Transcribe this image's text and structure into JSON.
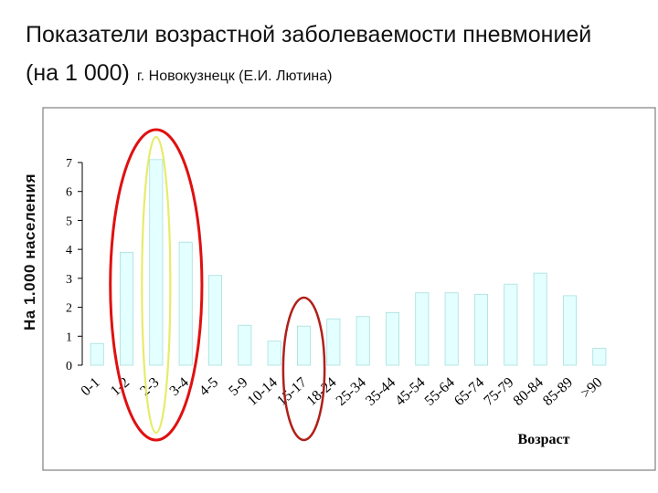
{
  "header": {
    "title_line1": "Показатели возрастной заболеваемости пневмонией",
    "title_line2_main": "(на 1 000)",
    "title_line2_sub": "г. Новокузнецк (Е.И. Лютина)"
  },
  "chart_data": {
    "type": "bar",
    "ylabel": "На 1.000 населения",
    "xlabel": "Возраст",
    "ylim": [
      0,
      7
    ],
    "yticks": [
      0,
      1,
      2,
      3,
      4,
      5,
      6,
      7
    ],
    "grid": false,
    "legend": "none",
    "categories": [
      "0-1",
      "1-2",
      "2-3",
      "3-4",
      "4-5",
      "5-9",
      "10-14",
      "15-17",
      "18-24",
      "25-34",
      "35-44",
      "45-54",
      "55-64",
      "65-74",
      "75-79",
      "80-84",
      "85-89",
      ">90"
    ],
    "values": [
      0.75,
      3.9,
      7.1,
      4.25,
      3.1,
      1.38,
      0.83,
      1.35,
      1.6,
      1.68,
      1.82,
      2.5,
      2.5,
      2.45,
      2.8,
      3.18,
      2.4,
      0.58
    ],
    "colors": {
      "bar_fill": "#e3ffff",
      "bar_shade": "#a8dede",
      "red_highlight": "#e01010",
      "yellow_highlight": "#e6ec6a",
      "dark_red_highlight": "#b0201a",
      "frame": "#808080"
    }
  }
}
